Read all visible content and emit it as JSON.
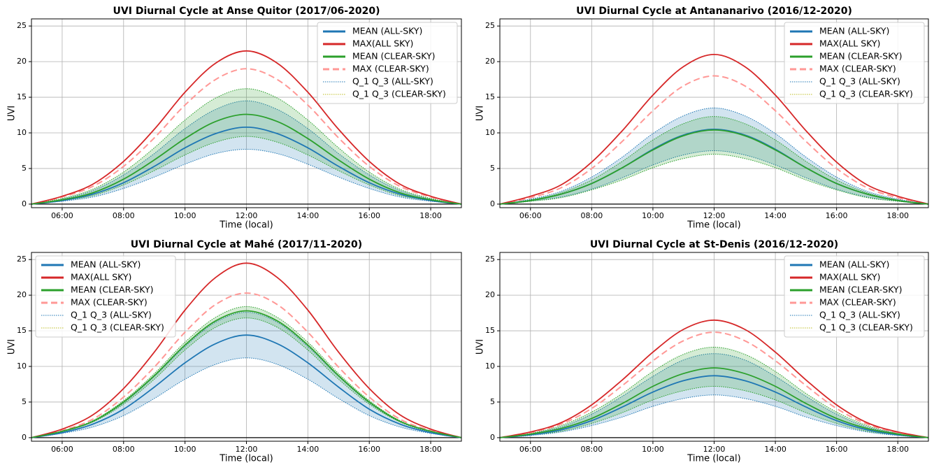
{
  "chart_data": [
    {
      "type": "line",
      "title": "UVI Diurnal Cycle at Anse Quitor (2017/06-2020)",
      "xlabel": "Time (local)",
      "ylabel": "UVI",
      "legend": "upper right",
      "grid": true,
      "x": [
        5,
        6,
        7,
        8,
        9,
        10,
        11,
        12,
        13,
        14,
        15,
        16,
        17,
        18,
        19
      ],
      "xlim": [
        5,
        19
      ],
      "ylim": [
        -0.5,
        26
      ],
      "xticks": [
        {
          "value": 6,
          "label": "06:00"
        },
        {
          "value": 8,
          "label": "08:00"
        },
        {
          "value": 10,
          "label": "10:00"
        },
        {
          "value": 12,
          "label": "12:00"
        },
        {
          "value": 14,
          "label": "14:00"
        },
        {
          "value": 16,
          "label": "16:00"
        },
        {
          "value": 18,
          "label": "18:00"
        }
      ],
      "yticks": [
        0,
        5,
        10,
        15,
        20,
        25
      ],
      "series": [
        {
          "name": "MEAN (ALL-SKY)",
          "color": "#1f77b4",
          "values": [
            0,
            0.5,
            1.4,
            3.0,
            5.3,
            7.9,
            9.9,
            10.8,
            9.9,
            7.9,
            5.3,
            3.0,
            1.4,
            0.5,
            0
          ]
        },
        {
          "name": "MAX(ALL SKY)",
          "color": "#d62728",
          "values": [
            0,
            1.1,
            2.8,
            6.0,
            10.5,
            15.7,
            19.8,
            21.5,
            19.8,
            15.7,
            10.5,
            6.0,
            2.8,
            1.1,
            0
          ]
        },
        {
          "name": "MEAN (CLEAR-SKY)",
          "color": "#2ca02c",
          "values": [
            0,
            0.6,
            1.6,
            3.5,
            6.2,
            9.2,
            11.6,
            12.6,
            11.6,
            9.2,
            6.2,
            3.5,
            1.6,
            0.6,
            0
          ]
        },
        {
          "name": "MAX (CLEAR-SKY)",
          "color": "#ff9896",
          "linestyle": "dashed",
          "values": [
            0,
            1.0,
            2.5,
            5.3,
            9.3,
            13.9,
            17.5,
            19.0,
            17.5,
            13.9,
            9.3,
            5.3,
            2.5,
            1.0,
            0
          ]
        },
        {
          "name": "Q_1 Q_3 (ALL-SKY)",
          "color": "#1f77b4",
          "type": "band",
          "lower": [
            0,
            0.4,
            1.0,
            2.2,
            3.8,
            5.6,
            7.1,
            7.7,
            7.1,
            5.6,
            3.8,
            2.2,
            1.0,
            0.4,
            0
          ],
          "upper": [
            0,
            0.7,
            1.9,
            4.1,
            7.1,
            10.6,
            13.3,
            14.5,
            13.3,
            10.6,
            7.1,
            4.1,
            1.9,
            0.7,
            0
          ]
        },
        {
          "name": "Q_1 Q_3 (CLEAR-SKY)",
          "color": "#2ca02c",
          "type": "band",
          "lower": [
            0,
            0.5,
            1.2,
            2.7,
            4.7,
            6.9,
            8.7,
            9.5,
            8.7,
            6.9,
            4.7,
            2.7,
            1.2,
            0.5,
            0
          ],
          "upper": [
            0,
            0.8,
            2.1,
            4.5,
            7.9,
            11.8,
            14.9,
            16.2,
            14.9,
            11.8,
            7.9,
            4.5,
            2.1,
            0.8,
            0
          ]
        }
      ]
    },
    {
      "type": "line",
      "title": "UVI Diurnal Cycle at Antananarivo (2016/12-2020)",
      "xlabel": "Time (local)",
      "ylabel": "UVI",
      "legend": "upper right",
      "grid": true,
      "x": [
        5,
        6,
        7,
        8,
        9,
        10,
        11,
        12,
        13,
        14,
        15,
        16,
        17,
        18,
        19
      ],
      "xlim": [
        5,
        19
      ],
      "ylim": [
        -0.5,
        26
      ],
      "xticks": [
        {
          "value": 6,
          "label": "06:00"
        },
        {
          "value": 8,
          "label": "08:00"
        },
        {
          "value": 10,
          "label": "10:00"
        },
        {
          "value": 12,
          "label": "12:00"
        },
        {
          "value": 14,
          "label": "14:00"
        },
        {
          "value": 16,
          "label": "16:00"
        },
        {
          "value": 18,
          "label": "18:00"
        }
      ],
      "yticks": [
        0,
        5,
        10,
        15,
        20,
        25
      ],
      "series": [
        {
          "name": "MEAN (ALL-SKY)",
          "color": "#1f77b4",
          "values": [
            0,
            0.5,
            1.4,
            2.9,
            5.1,
            7.7,
            9.7,
            10.5,
            9.7,
            7.7,
            5.1,
            2.9,
            1.4,
            0.5,
            0
          ]
        },
        {
          "name": "MAX(ALL SKY)",
          "color": "#d62728",
          "values": [
            0,
            1.1,
            2.7,
            5.9,
            10.3,
            15.3,
            19.3,
            21.0,
            19.3,
            15.3,
            10.3,
            5.9,
            2.7,
            1.1,
            0
          ]
        },
        {
          "name": "MEAN (CLEAR-SKY)",
          "color": "#2ca02c",
          "values": [
            0,
            0.5,
            1.4,
            2.9,
            5.1,
            7.6,
            9.6,
            10.4,
            9.6,
            7.6,
            5.1,
            2.9,
            1.4,
            0.5,
            0
          ]
        },
        {
          "name": "MAX (CLEAR-SKY)",
          "color": "#ff9896",
          "linestyle": "dashed",
          "values": [
            0,
            0.9,
            2.3,
            5.0,
            8.8,
            13.1,
            16.6,
            18.0,
            16.6,
            13.1,
            8.8,
            5.0,
            2.3,
            0.9,
            0
          ]
        },
        {
          "name": "Q_1 Q_3 (ALL-SKY)",
          "color": "#1f77b4",
          "type": "band",
          "lower": [
            0,
            0.4,
            1.0,
            2.1,
            3.7,
            5.5,
            6.9,
            7.5,
            6.9,
            5.5,
            3.7,
            2.1,
            1.0,
            0.4,
            0
          ],
          "upper": [
            0,
            0.7,
            1.8,
            3.8,
            6.6,
            9.9,
            12.4,
            13.5,
            12.4,
            9.9,
            6.6,
            3.8,
            1.8,
            0.7,
            0
          ]
        },
        {
          "name": "Q_1 Q_3 (CLEAR-SKY)",
          "color": "#2ca02c",
          "type": "band",
          "lower": [
            0,
            0.4,
            0.9,
            2.0,
            3.4,
            5.1,
            6.4,
            7.0,
            6.4,
            5.1,
            3.4,
            2.0,
            0.9,
            0.4,
            0
          ],
          "upper": [
            0,
            0.6,
            1.6,
            3.4,
            6.0,
            9.0,
            11.3,
            12.3,
            11.3,
            9.0,
            6.0,
            3.4,
            1.6,
            0.6,
            0
          ]
        }
      ]
    },
    {
      "type": "line",
      "title": "UVI Diurnal Cycle at Mahé (2017/11-2020)",
      "xlabel": "Time (local)",
      "ylabel": "UVI",
      "legend": "upper left",
      "grid": true,
      "x": [
        5,
        6,
        7,
        8,
        9,
        10,
        11,
        12,
        13,
        14,
        15,
        16,
        17,
        18,
        19
      ],
      "xlim": [
        5,
        19
      ],
      "ylim": [
        -0.5,
        26
      ],
      "xticks": [
        {
          "value": 6,
          "label": "06:00"
        },
        {
          "value": 8,
          "label": "08:00"
        },
        {
          "value": 10,
          "label": "10:00"
        },
        {
          "value": 12,
          "label": "12:00"
        },
        {
          "value": 14,
          "label": "14:00"
        },
        {
          "value": 16,
          "label": "16:00"
        },
        {
          "value": 18,
          "label": "18:00"
        }
      ],
      "yticks": [
        0,
        5,
        10,
        15,
        20,
        25
      ],
      "series": [
        {
          "name": "MEAN (ALL-SKY)",
          "color": "#1f77b4",
          "values": [
            0,
            0.7,
            1.9,
            4.0,
            7.1,
            10.5,
            13.2,
            14.4,
            13.2,
            10.5,
            7.1,
            4.0,
            1.9,
            0.7,
            0
          ]
        },
        {
          "name": "MAX(ALL SKY)",
          "color": "#d62728",
          "values": [
            0,
            1.2,
            3.2,
            6.9,
            12.0,
            17.9,
            22.5,
            24.5,
            22.5,
            17.9,
            12.0,
            6.9,
            3.2,
            1.2,
            0
          ]
        },
        {
          "name": "MEAN (CLEAR-SKY)",
          "color": "#2ca02c",
          "values": [
            0,
            0.9,
            2.3,
            5.0,
            8.7,
            13.0,
            16.4,
            17.8,
            16.4,
            13.0,
            8.7,
            5.0,
            2.3,
            0.9,
            0
          ]
        },
        {
          "name": "MAX (CLEAR-SKY)",
          "color": "#ff9896",
          "linestyle": "dashed",
          "values": [
            0,
            1.0,
            2.6,
            5.7,
            9.9,
            14.8,
            18.7,
            20.3,
            18.7,
            14.8,
            9.9,
            5.7,
            2.6,
            1.0,
            0
          ]
        },
        {
          "name": "Q_1 Q_3 (ALL-SKY)",
          "color": "#1f77b4",
          "type": "band",
          "lower": [
            0,
            0.6,
            1.5,
            3.1,
            5.5,
            8.2,
            10.3,
            11.2,
            10.3,
            8.2,
            5.5,
            3.1,
            1.5,
            0.6,
            0
          ],
          "upper": [
            0,
            0.9,
            2.3,
            4.9,
            8.6,
            12.8,
            16.2,
            17.6,
            16.2,
            12.8,
            8.6,
            4.9,
            2.3,
            0.9,
            0
          ]
        },
        {
          "name": "Q_1 Q_3 (CLEAR-SKY)",
          "color": "#2ca02c",
          "type": "band",
          "lower": [
            0,
            0.8,
            2.2,
            4.7,
            8.2,
            12.3,
            15.5,
            16.8,
            15.5,
            12.3,
            8.2,
            4.7,
            2.2,
            0.8,
            0
          ],
          "upper": [
            0,
            0.9,
            2.4,
            5.2,
            9.0,
            13.4,
            16.9,
            18.4,
            16.9,
            13.4,
            9.0,
            5.2,
            2.4,
            0.9,
            0
          ]
        }
      ]
    },
    {
      "type": "line",
      "title": "UVI Diurnal Cycle at St-Denis (2016/12-2020)",
      "xlabel": "Time (local)",
      "ylabel": "UVI",
      "legend": "upper right",
      "grid": true,
      "x": [
        5,
        6,
        7,
        8,
        9,
        10,
        11,
        12,
        13,
        14,
        15,
        16,
        17,
        18,
        19
      ],
      "xlim": [
        5,
        19
      ],
      "ylim": [
        -0.5,
        26
      ],
      "xticks": [
        {
          "value": 6,
          "label": "06:00"
        },
        {
          "value": 8,
          "label": "08:00"
        },
        {
          "value": 10,
          "label": "10:00"
        },
        {
          "value": 12,
          "label": "12:00"
        },
        {
          "value": 14,
          "label": "14:00"
        },
        {
          "value": 16,
          "label": "16:00"
        },
        {
          "value": 18,
          "label": "18:00"
        }
      ],
      "yticks": [
        0,
        5,
        10,
        15,
        20,
        25
      ],
      "series": [
        {
          "name": "MEAN (ALL-SKY)",
          "color": "#1f77b4",
          "values": [
            0,
            0.4,
            1.1,
            2.4,
            4.3,
            6.4,
            8.0,
            8.7,
            8.0,
            6.4,
            4.3,
            2.4,
            1.1,
            0.4,
            0
          ]
        },
        {
          "name": "MAX(ALL SKY)",
          "color": "#d62728",
          "values": [
            0,
            0.8,
            2.1,
            4.6,
            8.1,
            12.0,
            15.2,
            16.5,
            15.2,
            12.0,
            8.1,
            4.6,
            2.1,
            0.8,
            0
          ]
        },
        {
          "name": "MEAN (CLEAR-SKY)",
          "color": "#2ca02c",
          "values": [
            0,
            0.5,
            1.3,
            2.7,
            4.8,
            7.2,
            9.0,
            9.8,
            9.0,
            7.2,
            4.8,
            2.7,
            1.3,
            0.5,
            0
          ]
        },
        {
          "name": "MAX (CLEAR-SKY)",
          "color": "#ff9896",
          "linestyle": "dashed",
          "values": [
            0,
            0.7,
            1.9,
            4.1,
            7.3,
            10.8,
            13.6,
            14.8,
            13.6,
            10.8,
            7.3,
            4.1,
            1.9,
            0.7,
            0
          ]
        },
        {
          "name": "Q_1 Q_3 (ALL-SKY)",
          "color": "#1f77b4",
          "type": "band",
          "lower": [
            0,
            0.3,
            0.8,
            1.7,
            2.9,
            4.4,
            5.5,
            6.0,
            5.5,
            4.4,
            2.9,
            1.7,
            0.8,
            0.3,
            0
          ],
          "upper": [
            0,
            0.6,
            1.5,
            3.3,
            5.8,
            8.6,
            10.9,
            11.8,
            10.9,
            8.6,
            5.8,
            3.3,
            1.5,
            0.6,
            0
          ]
        },
        {
          "name": "Q_1 Q_3 (CLEAR-SKY)",
          "color": "#2ca02c",
          "type": "band",
          "lower": [
            0,
            0.4,
            0.9,
            2.0,
            3.5,
            5.3,
            6.6,
            7.2,
            6.6,
            5.3,
            3.5,
            2.0,
            0.9,
            0.4,
            0
          ],
          "upper": [
            0,
            0.6,
            1.7,
            3.6,
            6.2,
            9.3,
            11.7,
            12.7,
            11.7,
            9.3,
            6.2,
            3.6,
            1.7,
            0.6,
            0
          ]
        }
      ]
    }
  ]
}
